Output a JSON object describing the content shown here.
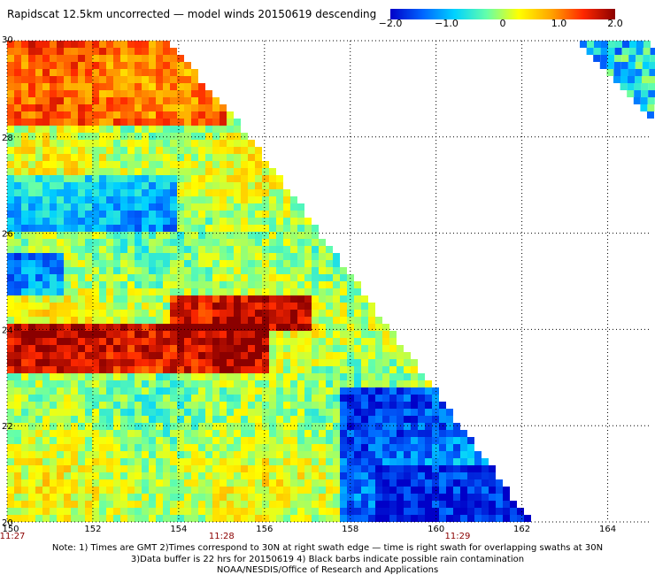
{
  "title": "Rapidscat 12.5km uncorrected — model winds 20150619 descending",
  "colorbar": {
    "labels": [
      "−2.0",
      "−1.0",
      "0",
      "1.0",
      "2.0"
    ],
    "values": [
      -2.0,
      -1.0,
      0,
      1.0,
      2.0
    ],
    "range": [
      -2.0,
      2.0
    ],
    "colors": [
      "#0000c8",
      "#0064ff",
      "#00d2ff",
      "#64ffaa",
      "#ffff00",
      "#ffa500",
      "#ff2800",
      "#8b0000"
    ]
  },
  "map": {
    "lon_range": [
      150,
      165
    ],
    "lat_range": [
      20,
      30
    ],
    "x_tick_labels": [
      "150",
      "152",
      "154",
      "156",
      "158",
      "160",
      "162",
      "164"
    ],
    "x_tick_values": [
      150,
      152,
      154,
      156,
      158,
      160,
      162,
      164
    ],
    "y_tick_labels": [
      "20",
      "22",
      "24",
      "26",
      "28",
      "30"
    ],
    "y_tick_values": [
      20,
      22,
      24,
      26,
      28,
      30
    ],
    "time_labels": [
      {
        "text": "11:27",
        "lon": 150
      },
      {
        "text": "11:28",
        "lon": 155
      },
      {
        "text": "11:29",
        "lon": 160.5
      }
    ],
    "grid": "dotted"
  },
  "notes": [
    "Note: 1) Times are GMT 2)Times correspond to 30N at right swath edge — time is right swath for overlapping swaths at 30N",
    "3)Data buffer is 22 hrs for 20150619 4) Black barbs indicate possible rain contamination",
    "NOAA/NESDIS/Office of Research and Applications"
  ]
}
